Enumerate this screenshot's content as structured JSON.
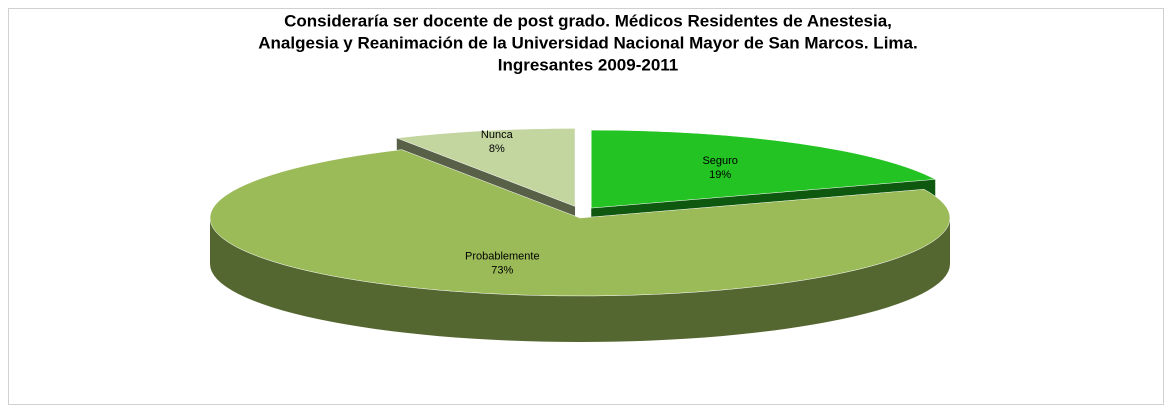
{
  "chart_data": {
    "type": "pie3d",
    "title": [
      "Consideraría ser docente de post grado. Médicos Residentes de Anestesia,",
      "Analgesia y Reanimación de la Universidad Nacional Mayor de San Marcos. Lima.",
      "Ingresantes 2009-2011"
    ],
    "categories": [
      "Seguro",
      "Probablemente",
      "Nunca"
    ],
    "values": [
      19,
      73,
      8
    ],
    "value_labels": [
      "19%",
      "73%",
      "8%"
    ],
    "colors": [
      "#22c322",
      "#9bbb59",
      "#c4d6a0"
    ],
    "exploded": [
      true,
      false,
      true
    ]
  }
}
